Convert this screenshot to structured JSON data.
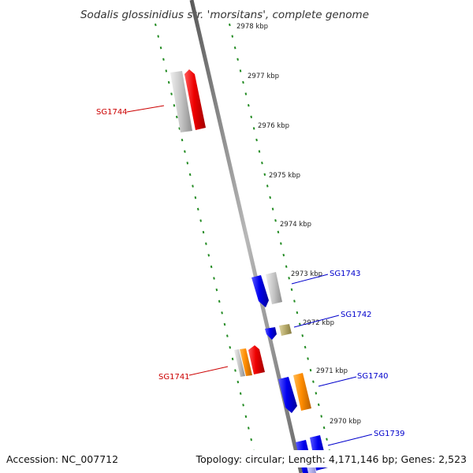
{
  "title": "Sodalis glossinidius str. 'morsitans', complete genome",
  "footer": {
    "accession": "Accession: NC_007712",
    "summary": "Topology: circular; Length: 4,171,146 bp; Genes: 2,523"
  },
  "ruler": {
    "kbp_labels": [
      "2978 kbp",
      "2977 kbp",
      "2976 kbp",
      "2975 kbp",
      "2974 kbp",
      "2973 kbp",
      "2972 kbp",
      "2971 kbp",
      "2970 kbp"
    ]
  },
  "gene_labels": {
    "sg1744": "SG1744",
    "sg1741": "SG1741",
    "sg1743": "SG1743",
    "sg1742": "SG1742",
    "sg1740": "SG1740",
    "sg1739": "SG1739"
  },
  "colors": {
    "forward_label": "#cc0000",
    "reverse_label": "#0000cc",
    "ruler_tick": "#228b22",
    "backbone": "#8a8a8a",
    "red": "#ee0000",
    "blue": "#0000ee",
    "grey": "#c0c0c0",
    "orange": "#ff8c00",
    "tan": "#b5a96a",
    "lavender": "#b8b8f0"
  }
}
